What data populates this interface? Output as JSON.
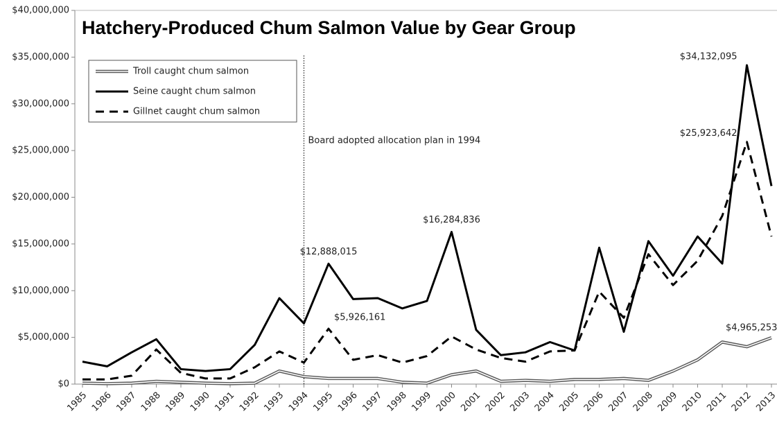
{
  "chart_data": {
    "type": "line",
    "title": "Hatchery-Produced Chum Salmon Value by Gear Group",
    "categories": [
      "1985",
      "1986",
      "1987",
      "1988",
      "1989",
      "1990",
      "1991",
      "1992",
      "1993",
      "1994",
      "1995",
      "1996",
      "1997",
      "1998",
      "1999",
      "2000",
      "2001",
      "2002",
      "2003",
      "2004",
      "2005",
      "2006",
      "2007",
      "2008",
      "2009",
      "2010",
      "2011",
      "2012",
      "2013"
    ],
    "series": [
      {
        "name": "Troll caught chum salmon",
        "color": "#595959",
        "line_style": "double",
        "values": [
          100000,
          50000,
          100000,
          300000,
          200000,
          100000,
          50000,
          100000,
          1400000,
          800000,
          600000,
          600000,
          600000,
          200000,
          100000,
          1000000,
          1400000,
          300000,
          400000,
          300000,
          500000,
          500000,
          600000,
          400000,
          1400000,
          2600000,
          4500000,
          4000000,
          4965253
        ],
        "value_labels": [
          null,
          null,
          null,
          null,
          null,
          null,
          null,
          null,
          null,
          null,
          null,
          null,
          null,
          null,
          null,
          null,
          null,
          null,
          null,
          null,
          null,
          null,
          null,
          null,
          null,
          null,
          null,
          null,
          "$4,965,253"
        ]
      },
      {
        "name": "Seine caught chum salmon",
        "color": "#000000",
        "line_style": "solid",
        "values": [
          2400000,
          1900000,
          3400000,
          4800000,
          1600000,
          1400000,
          1600000,
          4200000,
          9200000,
          6500000,
          12888015,
          9100000,
          9200000,
          8100000,
          8900000,
          16284836,
          5800000,
          3100000,
          3400000,
          4500000,
          3600000,
          14600000,
          5600000,
          15300000,
          11600000,
          15800000,
          12900000,
          34132095,
          21200000
        ],
        "value_labels": [
          null,
          null,
          null,
          null,
          null,
          null,
          null,
          null,
          null,
          null,
          "$12,888,015",
          null,
          null,
          null,
          null,
          "$16,284,836",
          null,
          null,
          null,
          null,
          null,
          null,
          null,
          null,
          null,
          null,
          null,
          "$34,132,095",
          null
        ]
      },
      {
        "name": "Gillnet caught chum salmon",
        "color": "#000000",
        "line_style": "dashed",
        "values": [
          500000,
          500000,
          900000,
          3700000,
          1200000,
          600000,
          600000,
          1800000,
          3500000,
          2300000,
          5926161,
          2600000,
          3100000,
          2300000,
          3000000,
          5100000,
          3700000,
          2800000,
          2400000,
          3500000,
          3600000,
          9900000,
          7100000,
          13900000,
          10600000,
          13200000,
          18000000,
          25923642,
          15800000
        ],
        "value_labels": [
          null,
          null,
          null,
          null,
          null,
          null,
          null,
          null,
          null,
          null,
          "$5,926,161",
          null,
          null,
          null,
          null,
          null,
          null,
          null,
          null,
          null,
          null,
          null,
          null,
          null,
          null,
          null,
          null,
          "$25,923,642",
          null
        ]
      }
    ],
    "annotation": {
      "text": "Board adopted allocation plan in 1994",
      "category": "1994"
    },
    "ylim": [
      0,
      40000000
    ],
    "yticks": [
      {
        "value": 0,
        "label": "$0"
      },
      {
        "value": 5000000,
        "label": "$5,000,000"
      },
      {
        "value": 10000000,
        "label": "$10,000,000"
      },
      {
        "value": 15000000,
        "label": "$15,000,000"
      },
      {
        "value": 20000000,
        "label": "$20,000,000"
      },
      {
        "value": 25000000,
        "label": "$25,000,000"
      },
      {
        "value": 30000000,
        "label": "$30,000,000"
      },
      {
        "value": 35000000,
        "label": "$35,000,000"
      },
      {
        "value": 40000000,
        "label": "$40,000,000"
      }
    ],
    "legend": "upper left",
    "grid": false
  }
}
